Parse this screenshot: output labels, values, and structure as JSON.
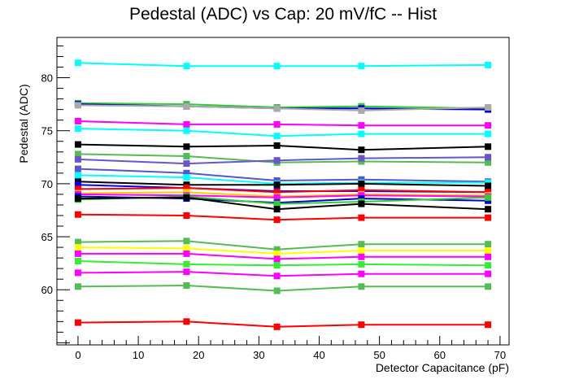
{
  "chart_data": {
    "type": "line",
    "title": "Pedestal (ADC) vs Cap: 20 mV/fC -- Hist",
    "xlabel": "Detector Capacitance (pF)",
    "ylabel": "Pedestal (ADC)",
    "xlim": [
      -3.5,
      71.5
    ],
    "ylim": [
      54.8,
      83.8
    ],
    "x_ticks": [
      0,
      10,
      20,
      30,
      40,
      50,
      60,
      70
    ],
    "y_ticks": [
      60,
      65,
      70,
      75,
      80
    ],
    "grid": false,
    "legend": "none",
    "x": [
      0,
      18,
      33,
      47,
      68
    ],
    "series": [
      {
        "color": "#00ffff",
        "values": [
          81.4,
          81.1,
          81.1,
          81.1,
          81.2
        ]
      },
      {
        "color": "#33cc33",
        "values": [
          77.6,
          77.5,
          77.2,
          77.3,
          77.1
        ]
      },
      {
        "color": "#0000cc",
        "values": [
          77.5,
          77.3,
          77.1,
          77.1,
          77.0
        ]
      },
      {
        "color": "#aaaaaa",
        "values": [
          77.4,
          77.3,
          77.1,
          76.9,
          77.2
        ]
      },
      {
        "color": "#ff00ff",
        "values": [
          75.9,
          75.6,
          75.6,
          75.5,
          75.5
        ]
      },
      {
        "color": "#00ffff",
        "values": [
          75.2,
          75.0,
          74.5,
          74.7,
          74.7
        ]
      },
      {
        "color": "#000000",
        "values": [
          73.7,
          73.5,
          73.6,
          73.2,
          73.5
        ]
      },
      {
        "color": "#55bb55",
        "values": [
          72.8,
          72.6,
          72.0,
          72.1,
          72.0
        ]
      },
      {
        "color": "#6655cc",
        "values": [
          72.3,
          71.9,
          72.2,
          72.4,
          72.5
        ]
      },
      {
        "color": "#5555cc",
        "values": [
          71.4,
          71.0,
          70.3,
          70.4,
          70.2
        ]
      },
      {
        "color": "#00ffff",
        "values": [
          70.8,
          70.6,
          70.0,
          70.1,
          70.1
        ]
      },
      {
        "color": "#000000",
        "values": [
          70.2,
          69.9,
          69.9,
          70.0,
          69.8
        ]
      },
      {
        "color": "#0000ff",
        "values": [
          69.9,
          69.6,
          69.3,
          69.3,
          69.2
        ]
      },
      {
        "color": "#ff0000",
        "values": [
          69.5,
          69.6,
          69.2,
          69.4,
          69.2
        ]
      },
      {
        "color": "#ffcc00",
        "values": [
          69.1,
          69.2,
          68.8,
          69.0,
          68.9
        ]
      },
      {
        "color": "#ff00ff",
        "values": [
          69.0,
          68.9,
          68.7,
          68.9,
          68.8
        ]
      },
      {
        "color": "#0000cc",
        "values": [
          68.8,
          68.6,
          68.2,
          68.6,
          68.4
        ]
      },
      {
        "color": "#33cc33",
        "values": [
          68.5,
          68.8,
          68.1,
          68.3,
          68.7
        ]
      },
      {
        "color": "#000000",
        "values": [
          68.6,
          68.7,
          67.6,
          68.1,
          67.6
        ]
      },
      {
        "color": "#ff0000",
        "values": [
          67.1,
          67.0,
          66.6,
          66.8,
          66.8
        ]
      },
      {
        "color": "#55bb55",
        "values": [
          64.5,
          64.6,
          63.8,
          64.3,
          64.3
        ]
      },
      {
        "color": "#ffff00",
        "values": [
          64.0,
          63.9,
          63.4,
          63.7,
          63.7
        ]
      },
      {
        "color": "#ff00ff",
        "values": [
          63.4,
          63.4,
          62.9,
          63.1,
          63.1
        ]
      },
      {
        "color": "#33ee33",
        "values": [
          62.7,
          62.4,
          62.3,
          62.4,
          62.3
        ]
      },
      {
        "color": "#ff00ff",
        "values": [
          61.6,
          61.7,
          61.3,
          61.5,
          61.5
        ]
      },
      {
        "color": "#55bb55",
        "values": [
          60.3,
          60.4,
          59.9,
          60.3,
          60.3
        ]
      },
      {
        "color": "#ff0000",
        "values": [
          56.9,
          57.0,
          56.5,
          56.7,
          56.7
        ]
      }
    ]
  }
}
